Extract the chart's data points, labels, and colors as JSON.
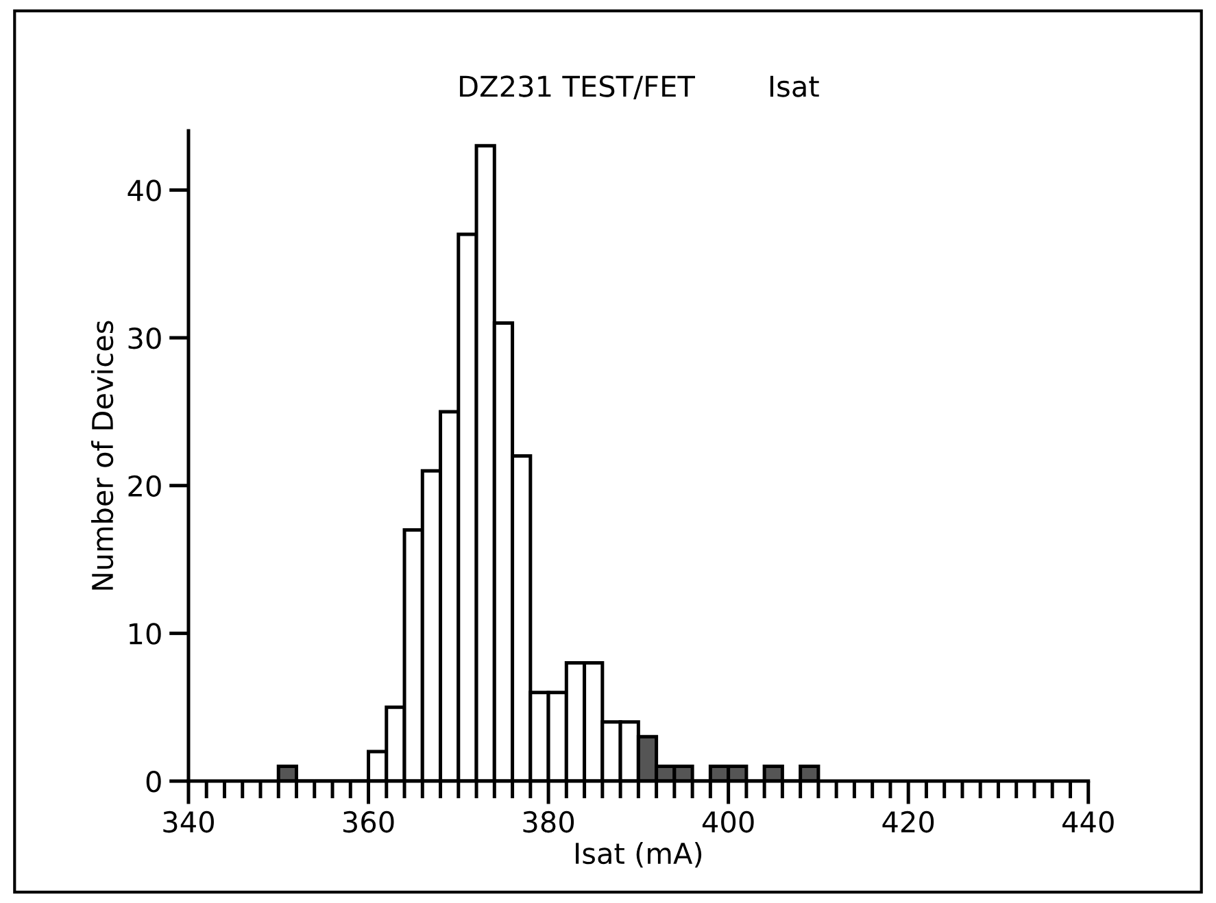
{
  "chart_data": {
    "type": "histogram",
    "title": "DZ231 TEST/FET        Isat",
    "xlabel": "Isat (mA)",
    "ylabel": "Number of Devices",
    "bins": [
      350,
      352,
      354,
      356,
      358,
      360,
      362,
      364,
      366,
      368,
      370,
      372,
      374,
      376,
      378,
      380,
      382,
      384,
      386,
      388,
      390,
      392,
      394,
      396,
      398,
      400,
      402,
      404,
      406,
      408,
      410
    ],
    "values": [
      1,
      0,
      0,
      0,
      0,
      2,
      5,
      17,
      21,
      25,
      37,
      43,
      31,
      22,
      6,
      6,
      8,
      8,
      4,
      4,
      3,
      1,
      1,
      0,
      1,
      1,
      0,
      1,
      0,
      1
    ],
    "colors": [
      "#555555",
      "#ffffff",
      "#ffffff",
      "#ffffff",
      "#ffffff",
      "#ffffff",
      "#ffffff",
      "#ffffff",
      "#ffffff",
      "#ffffff",
      "#ffffff",
      "#ffffff",
      "#ffffff",
      "#ffffff",
      "#ffffff",
      "#ffffff",
      "#ffffff",
      "#ffffff",
      "#ffffff",
      "#ffffff",
      "#555555",
      "#555555",
      "#555555",
      "#ffffff",
      "#555555",
      "#555555",
      "#ffffff",
      "#555555",
      "#ffffff",
      "#555555"
    ],
    "xlim": [
      340,
      440
    ],
    "ylim": [
      0,
      44
    ],
    "xticks": [
      340,
      360,
      380,
      400,
      420,
      440
    ],
    "yticks": [
      0,
      10,
      20,
      30,
      40
    ],
    "grid": false,
    "legend": false
  }
}
